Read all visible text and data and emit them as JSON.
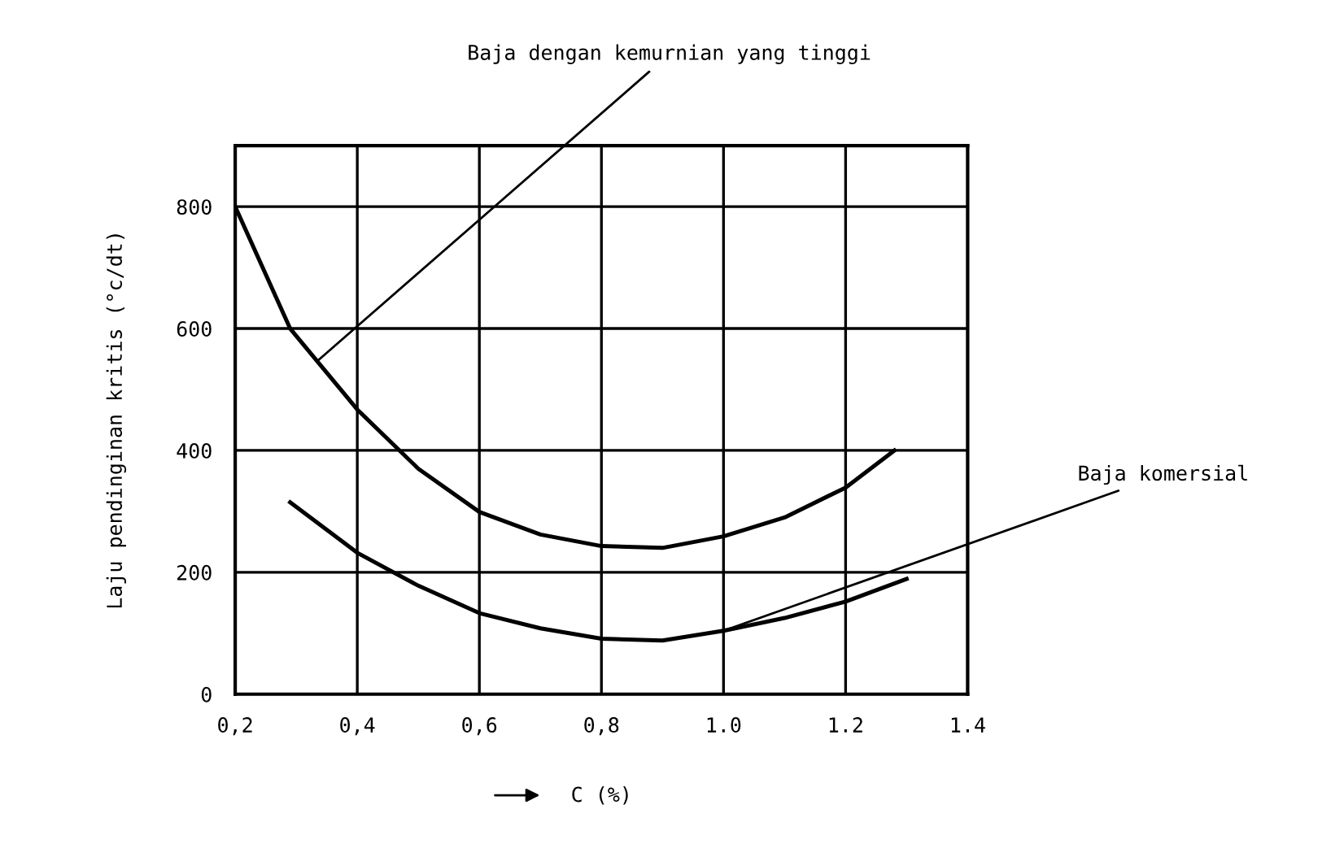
{
  "chart_data": {
    "type": "line",
    "xlabel": "C (%)",
    "ylabel": "Laju pendinginan kritis (°c/dt)",
    "series": [
      {
        "color": "#000000",
        "x": [
          0.2,
          0.29,
          0.4,
          0.5,
          0.6,
          0.7,
          0.8,
          0.9,
          1.0,
          1.1,
          1.2,
          1.28
        ],
        "values": [
          800,
          600,
          467,
          370,
          299,
          262,
          243,
          240,
          259,
          290,
          339,
          400
        ]
      },
      {
        "color": "#000000",
        "x": [
          0.29,
          0.4,
          0.5,
          0.6,
          0.7,
          0.8,
          0.9,
          1.0,
          1.1,
          1.2,
          1.3
        ],
        "values": [
          315,
          232,
          178,
          133,
          108,
          91,
          88,
          104,
          125,
          152,
          189
        ]
      }
    ],
    "annotations": [
      {
        "text": "Baja dengan kemurnian yang tinggi",
        "x": 0.335,
        "y": 547
      },
      {
        "text": "Baja komersial",
        "x": 1.0,
        "y": 104
      }
    ],
    "xlim": [
      0.2,
      1.4
    ],
    "ylim": [
      0,
      900
    ],
    "xticks": [
      {
        "value": 0.2,
        "label": "0,2"
      },
      {
        "value": 0.4,
        "label": "0,4"
      },
      {
        "value": 0.6,
        "label": "0,6"
      },
      {
        "value": 0.8,
        "label": "0,8"
      },
      {
        "value": 1.0,
        "label": "1.0"
      },
      {
        "value": 1.2,
        "label": "1.2"
      },
      {
        "value": 1.4,
        "label": "1.4"
      }
    ],
    "yticks": [
      0,
      200,
      400,
      600,
      800,
      {
        "value": 900,
        "label": null
      }
    ],
    "grid": true,
    "legend": false,
    "marker": "none",
    "line_style": "solid"
  }
}
